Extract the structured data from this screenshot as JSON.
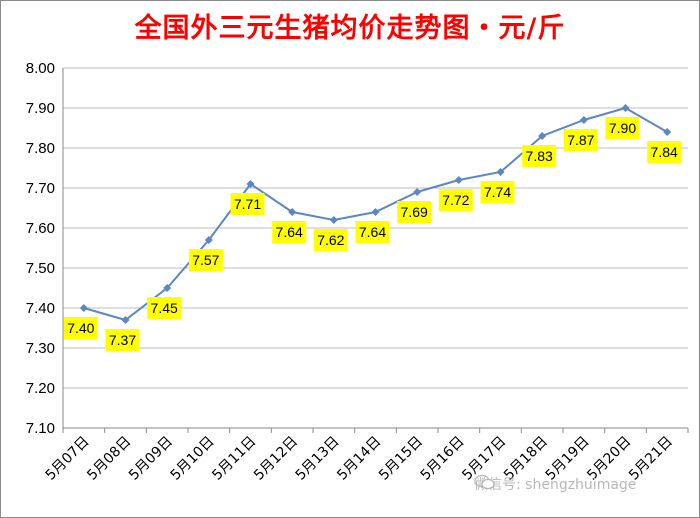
{
  "chart_data": {
    "type": "line",
    "title": "全国外三元生猪均价走势图・元/斤",
    "categories": [
      "5月07日",
      "5月08日",
      "5月09日",
      "5月10日",
      "5月11日",
      "5月12日",
      "5月13日",
      "5月14日",
      "5月15日",
      "5月16日",
      "5月17日",
      "5月18日",
      "5月19日",
      "5月20日",
      "5月21日"
    ],
    "values": [
      7.4,
      7.37,
      7.45,
      7.57,
      7.71,
      7.64,
      7.62,
      7.64,
      7.69,
      7.72,
      7.74,
      7.83,
      7.87,
      7.9,
      7.84
    ],
    "ylim": [
      7.1,
      8.0
    ],
    "yticks": [
      "7.10",
      "7.20",
      "7.30",
      "7.40",
      "7.50",
      "7.60",
      "7.70",
      "7.80",
      "7.90",
      "8.00"
    ],
    "grid": true,
    "line_color": "#5b87c2",
    "label_bg_color": "#ffff00"
  },
  "watermark": "微信号: shengzhuimage"
}
